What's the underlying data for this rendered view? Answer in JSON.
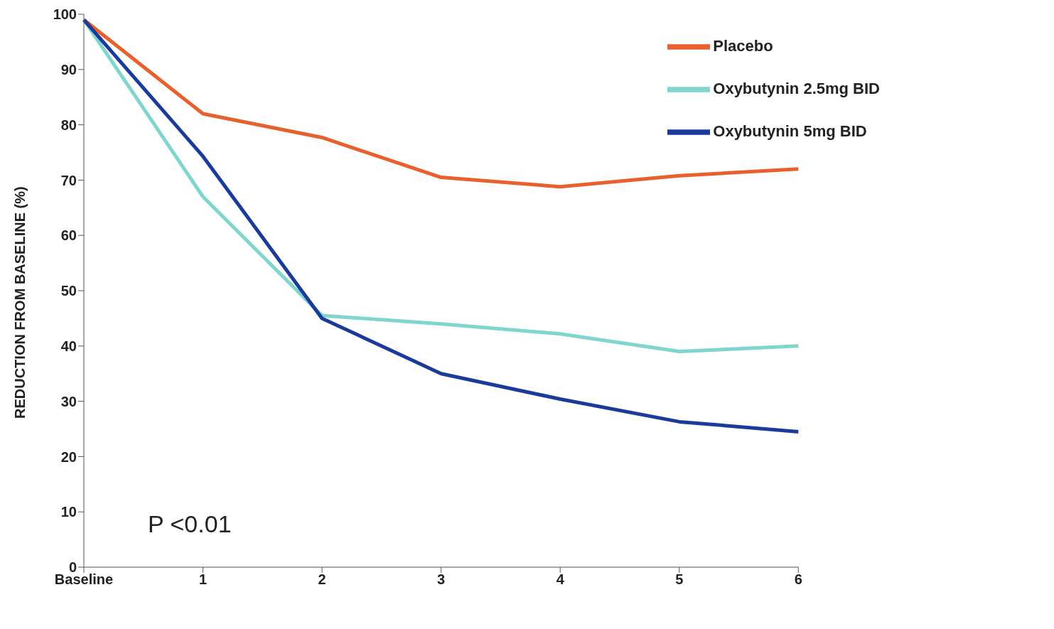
{
  "chart_data": {
    "type": "line",
    "ylabel": "REDUCTION FROM BASELINE (%)",
    "categories": [
      "Baseline",
      "1",
      "2",
      "3",
      "4",
      "5",
      "6"
    ],
    "series": [
      {
        "name": "Placebo",
        "color": "#e8602c",
        "values": [
          99,
          82,
          77.7,
          70.5,
          68.8,
          70.8,
          72
        ]
      },
      {
        "name": "Oxybutynin 2.5mg BID",
        "color": "#7fd6cc",
        "values": [
          99,
          67,
          45.5,
          44,
          42.2,
          39,
          40
        ]
      },
      {
        "name": "Oxybutynin 5mg BID",
        "color": "#1a3a9c",
        "values": [
          99,
          74.3,
          45,
          35,
          30.4,
          26.3,
          24.5
        ]
      }
    ],
    "ylim": [
      0,
      100
    ],
    "yticks": [
      0,
      10,
      20,
      30,
      40,
      50,
      60,
      70,
      80,
      90,
      100
    ],
    "grid": false,
    "legend": "top right",
    "marker": "none",
    "line_style": "solid",
    "annotations": [
      "P <0.01"
    ]
  }
}
